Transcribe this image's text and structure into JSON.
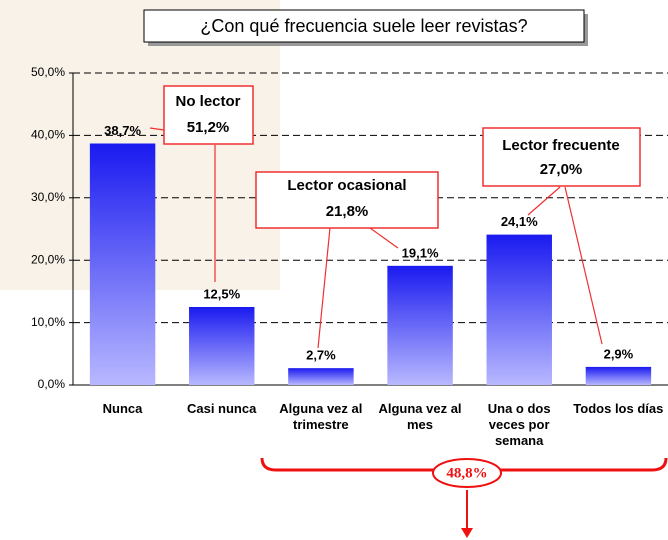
{
  "chart_data": {
    "type": "bar",
    "title": "¿Con qué frecuencia suele leer revistas?",
    "categories": [
      "Nunca",
      "Casi nunca",
      "Alguna vez al trimestre",
      "Alguna vez al mes",
      "Una o dos veces por semana",
      "Todos los días"
    ],
    "values": [
      38.7,
      12.5,
      2.7,
      19.1,
      24.1,
      2.9
    ],
    "value_labels": [
      "38,7%",
      "12,5%",
      "2,7%",
      "19,1%",
      "24,1%",
      "2,9%"
    ],
    "color": "#1a1af0",
    "ylim": [
      0,
      50
    ],
    "yticks": [
      {
        "value": 0,
        "label": "0,0%"
      },
      {
        "value": 10,
        "label": "10,0%"
      },
      {
        "value": 20,
        "label": "20,0%"
      },
      {
        "value": 30,
        "label": "30,0%"
      },
      {
        "value": 40,
        "label": "40,0%"
      },
      {
        "value": 50,
        "label": "50,0%"
      }
    ],
    "grid": true,
    "annotations": [
      {
        "title": "No lector",
        "value": "51,2%"
      },
      {
        "title": "Lector ocasional",
        "value": "21,8%"
      },
      {
        "title": "Lector frecuente",
        "value": "27,0%"
      },
      {
        "value": "48,8%"
      }
    ]
  }
}
